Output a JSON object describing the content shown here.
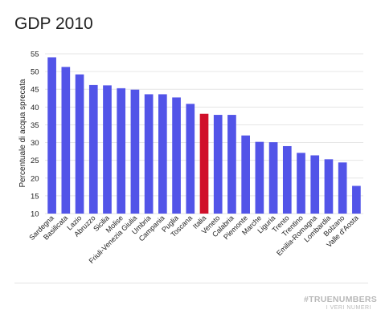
{
  "chart_data": {
    "type": "bar",
    "title": "GDP 2010",
    "xlabel": "",
    "ylabel": "Percentuale di acqua sprecata",
    "ylim": [
      10,
      55
    ],
    "yticks": [
      10,
      15,
      20,
      25,
      30,
      35,
      40,
      45,
      50,
      55
    ],
    "grid": true,
    "categories": [
      "Sardegna",
      "Basilicata",
      "Lazio",
      "Abruzzo",
      "Sicilia",
      "Molise",
      "Friuli-Venezia Giulia",
      "Umbria",
      "Campania",
      "Puglia",
      "Toscana",
      "Italia",
      "Veneto",
      "Calabria",
      "Piemonte",
      "Marche",
      "Liguria",
      "Trento",
      "Trentino",
      "Emilia-Romagna",
      "Lombardia",
      "Bolzano",
      "Valle d'Aosta"
    ],
    "values": [
      54.0,
      51.3,
      49.2,
      46.2,
      46.1,
      45.3,
      44.9,
      43.6,
      43.6,
      42.7,
      40.9,
      38.1,
      37.8,
      37.8,
      32.0,
      30.2,
      30.1,
      29.0,
      27.1,
      26.4,
      25.3,
      24.4,
      17.8
    ],
    "highlight": "Italia",
    "colors": {
      "bar": "#5254e8",
      "highlight": "#d0102a"
    }
  },
  "branding": {
    "main": "#TRUENUMBERS",
    "sub": "I VERI NUMERI"
  }
}
